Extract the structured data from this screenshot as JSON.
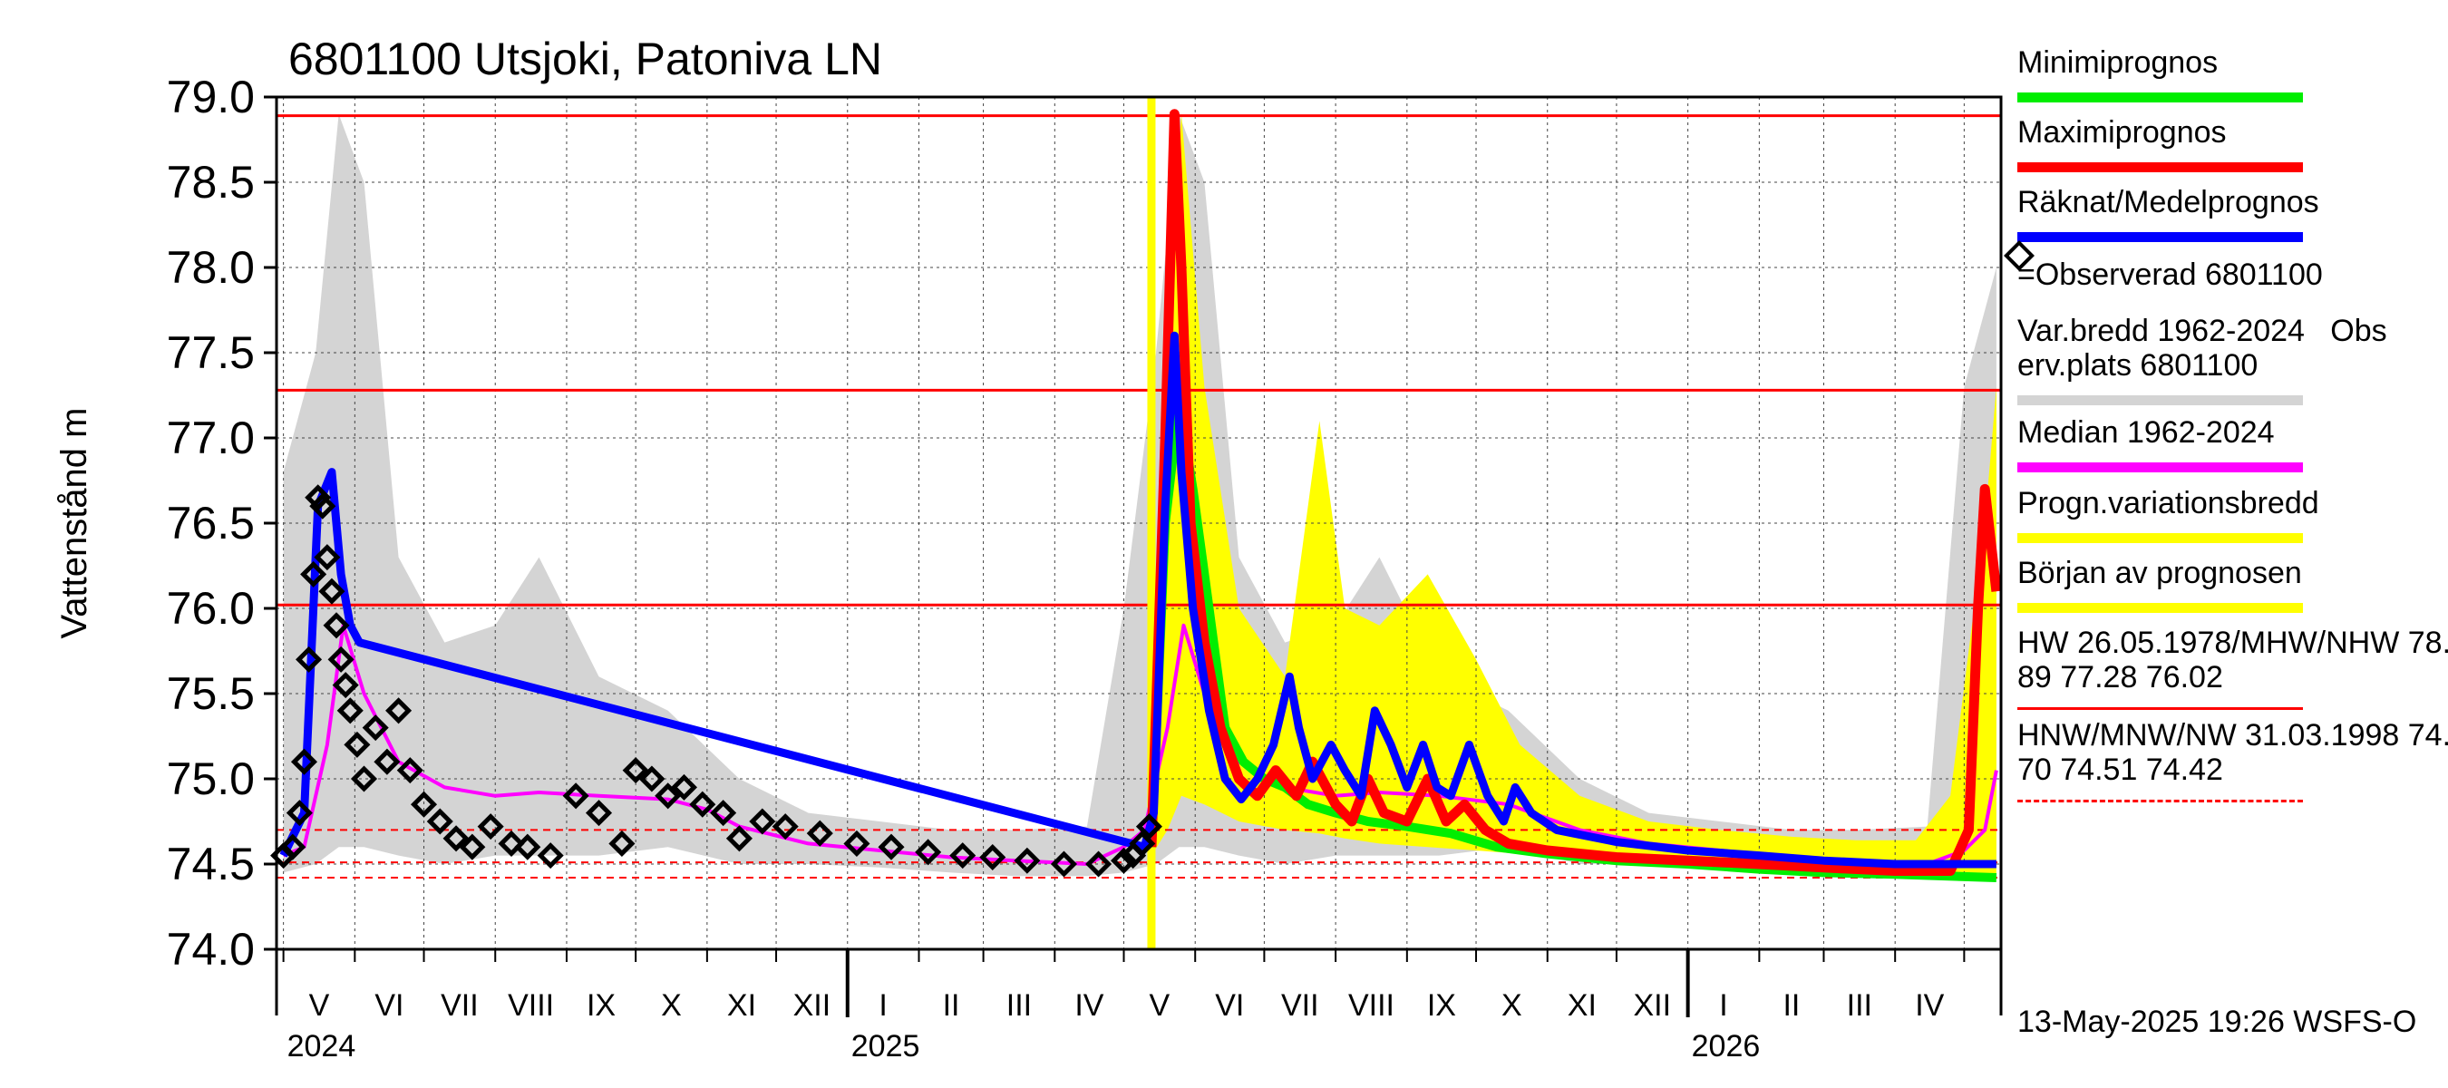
{
  "chart_data": {
    "type": "line",
    "title": "6801100 Utsjoki, Patoniva LN",
    "ylabel": "Vattenstånd m",
    "ylim": [
      74.0,
      79.0
    ],
    "yticks": [
      "74.0",
      "74.5",
      "75.0",
      "75.5",
      "76.0",
      "76.5",
      "77.0",
      "77.5",
      "78.0",
      "78.5",
      "79.0"
    ],
    "grid": true,
    "months": [
      "V",
      "VI",
      "VII",
      "VIII",
      "IX",
      "X",
      "XI",
      "XII",
      "I",
      "II",
      "III",
      "IV",
      "V",
      "VI",
      "VII",
      "VIII",
      "IX",
      "X",
      "XI",
      "XII",
      "I",
      "II",
      "III",
      "IV"
    ],
    "years": [
      "2024",
      "2025",
      "2026"
    ],
    "forecast_start": "2025-05-13",
    "reference_lines": [
      {
        "name": "HW",
        "value": 78.89,
        "style": "solid"
      },
      {
        "name": "MHW",
        "value": 77.28,
        "style": "solid"
      },
      {
        "name": "NHW",
        "value": 76.02,
        "style": "solid"
      },
      {
        "name": "HNW",
        "value": 74.7,
        "style": "dashed"
      },
      {
        "name": "MNW",
        "value": 74.51,
        "style": "dashed"
      },
      {
        "name": "NW",
        "value": 74.42,
        "style": "dashed"
      }
    ],
    "series": [
      {
        "name": "Var.bredd 1962-2024 Obs erv.plats 6801100",
        "kind": "band",
        "color": "#d4d4d4",
        "x": [
          "2024-05-01",
          "2024-05-15",
          "2024-05-25",
          "2024-06-05",
          "2024-06-20",
          "2024-07-10",
          "2024-08-01",
          "2024-08-20",
          "2024-09-15",
          "2024-10-15",
          "2024-11-15",
          "2024-12-15",
          "2025-01-15",
          "2025-02-15",
          "2025-03-15",
          "2025-04-15",
          "2025-05-01",
          "2025-05-15",
          "2025-05-25",
          "2025-06-05",
          "2025-06-20",
          "2025-07-10",
          "2025-08-01",
          "2025-08-20",
          "2025-09-15",
          "2025-10-15",
          "2025-11-15",
          "2025-12-15",
          "2026-01-15",
          "2026-02-15",
          "2026-03-15",
          "2026-04-15",
          "2026-05-01",
          "2026-05-15"
        ],
        "low": [
          74.45,
          74.5,
          74.6,
          74.6,
          74.55,
          74.5,
          74.55,
          74.55,
          74.55,
          74.6,
          74.5,
          74.5,
          74.48,
          74.45,
          74.43,
          74.43,
          74.45,
          74.5,
          74.6,
          74.6,
          74.55,
          74.5,
          74.55,
          74.55,
          74.55,
          74.6,
          74.5,
          74.5,
          74.48,
          74.45,
          74.43,
          74.43,
          74.45,
          74.5
        ],
        "high": [
          76.8,
          77.5,
          78.9,
          78.5,
          76.3,
          75.8,
          75.9,
          76.3,
          75.6,
          75.4,
          75.0,
          74.8,
          74.75,
          74.7,
          74.7,
          74.72,
          76.0,
          77.5,
          78.9,
          78.5,
          76.3,
          75.8,
          75.9,
          76.3,
          75.6,
          75.4,
          75.0,
          74.8,
          74.75,
          74.7,
          74.7,
          74.72,
          77.3,
          78.0
        ]
      },
      {
        "name": "Progn.variationsbredd",
        "kind": "band",
        "color": "#ffff00",
        "x": [
          "2025-05-13",
          "2025-05-20",
          "2025-05-26",
          "2025-06-05",
          "2025-06-20",
          "2025-07-10",
          "2025-07-25",
          "2025-08-05",
          "2025-08-20",
          "2025-09-10",
          "2025-10-01",
          "2025-10-20",
          "2025-11-15",
          "2025-12-15",
          "2026-01-15",
          "2026-02-15",
          "2026-03-15",
          "2026-04-10",
          "2026-04-25",
          "2026-05-10",
          "2026-05-15"
        ],
        "low": [
          74.55,
          74.7,
          74.9,
          74.85,
          74.75,
          74.7,
          74.68,
          74.65,
          74.62,
          74.6,
          74.58,
          74.56,
          74.54,
          74.52,
          74.5,
          74.48,
          74.46,
          74.44,
          74.44,
          74.44,
          74.44
        ],
        "high": [
          74.8,
          77.5,
          78.9,
          77.3,
          76.0,
          75.6,
          77.1,
          76.0,
          75.9,
          76.2,
          75.7,
          75.2,
          74.9,
          74.75,
          74.7,
          74.66,
          74.64,
          74.64,
          74.9,
          76.5,
          77.3
        ]
      },
      {
        "name": "Median 1962-2024",
        "kind": "line",
        "color": "#ff00ff",
        "x": [
          "2024-05-01",
          "2024-05-10",
          "2024-05-20",
          "2024-05-27",
          "2024-06-05",
          "2024-06-20",
          "2024-07-10",
          "2024-08-01",
          "2024-08-20",
          "2024-09-15",
          "2024-10-15",
          "2024-11-01",
          "2024-11-15",
          "2024-12-15",
          "2025-01-15",
          "2025-02-15",
          "2025-03-15",
          "2025-04-15",
          "2025-05-01",
          "2025-05-10",
          "2025-05-20",
          "2025-05-27",
          "2025-06-05",
          "2025-06-20",
          "2025-07-10",
          "2025-08-01",
          "2025-08-20",
          "2025-09-15",
          "2025-10-15",
          "2025-11-15",
          "2025-12-15",
          "2026-01-15",
          "2026-02-15",
          "2026-03-15",
          "2026-04-15",
          "2026-05-01",
          "2026-05-10",
          "2026-05-15"
        ],
        "y": [
          74.55,
          74.6,
          75.2,
          75.9,
          75.5,
          75.1,
          74.95,
          74.9,
          74.92,
          74.9,
          74.88,
          74.82,
          74.72,
          74.62,
          74.58,
          74.54,
          74.52,
          74.5,
          74.6,
          74.7,
          75.3,
          75.9,
          75.5,
          75.1,
          74.95,
          74.9,
          74.92,
          74.9,
          74.85,
          74.7,
          74.62,
          74.58,
          74.54,
          74.52,
          74.5,
          74.58,
          74.7,
          75.05
        ]
      },
      {
        "name": "Räknat/Medelprognos",
        "kind": "line",
        "color": "#0000ff",
        "x": [
          "2024-05-01",
          "2024-05-10",
          "2024-05-16",
          "2024-05-22",
          "2024-05-26",
          "2024-05-30",
          "2024-06-03",
          "2025-05-10",
          "2025-05-14",
          "2025-05-19",
          "2025-05-23",
          "2025-05-26",
          "2025-05-31",
          "2025-06-07",
          "2025-06-14",
          "2025-06-21",
          "2025-06-28",
          "2025-07-05",
          "2025-07-12",
          "2025-07-16",
          "2025-07-22",
          "2025-07-30",
          "2025-08-05",
          "2025-08-12",
          "2025-08-18",
          "2025-08-25",
          "2025-09-01",
          "2025-09-08",
          "2025-09-14",
          "2025-09-20",
          "2025-09-28",
          "2025-10-06",
          "2025-10-13",
          "2025-10-18",
          "2025-10-25",
          "2025-11-05",
          "2025-12-01",
          "2026-01-01",
          "2026-02-01",
          "2026-03-01",
          "2026-04-01",
          "2026-05-15"
        ],
        "y": [
          74.55,
          74.8,
          76.6,
          76.8,
          76.2,
          75.9,
          75.8,
          74.6,
          74.8,
          76.6,
          77.6,
          76.8,
          76.0,
          75.4,
          75.0,
          74.88,
          75.0,
          75.2,
          75.6,
          75.3,
          75.0,
          75.2,
          75.05,
          74.9,
          75.4,
          75.2,
          74.95,
          75.2,
          74.95,
          74.9,
          75.2,
          74.9,
          74.75,
          74.95,
          74.8,
          74.7,
          74.63,
          74.58,
          74.55,
          74.52,
          74.5,
          74.5
        ]
      },
      {
        "name": "Minimiprognos",
        "kind": "line",
        "color": "#00ee00",
        "x": [
          "2025-05-13",
          "2025-05-19",
          "2025-05-25",
          "2025-05-31",
          "2025-06-07",
          "2025-06-14",
          "2025-06-22",
          "2025-07-01",
          "2025-07-10",
          "2025-07-20",
          "2025-08-01",
          "2025-08-15",
          "2025-09-01",
          "2025-09-20",
          "2025-10-10",
          "2025-11-01",
          "2025-12-01",
          "2026-01-01",
          "2026-02-01",
          "2026-03-01",
          "2026-04-01",
          "2026-05-15"
        ],
        "y": [
          74.6,
          76.5,
          77.2,
          76.7,
          76.0,
          75.3,
          75.1,
          75.0,
          74.95,
          74.85,
          74.8,
          74.75,
          74.72,
          74.68,
          74.6,
          74.56,
          74.52,
          74.5,
          74.47,
          74.45,
          74.44,
          74.42
        ]
      },
      {
        "name": "Maximiprognos",
        "kind": "line",
        "color": "#ff0000",
        "x": [
          "2025-05-13",
          "2025-05-19",
          "2025-05-23",
          "2025-05-26",
          "2025-05-30",
          "2025-06-05",
          "2025-06-12",
          "2025-06-20",
          "2025-06-28",
          "2025-07-06",
          "2025-07-15",
          "2025-07-22",
          "2025-08-01",
          "2025-08-08",
          "2025-08-15",
          "2025-08-22",
          "2025-09-01",
          "2025-09-10",
          "2025-09-18",
          "2025-09-26",
          "2025-10-05",
          "2025-10-15",
          "2025-11-01",
          "2025-12-01",
          "2026-01-01",
          "2026-02-01",
          "2026-03-01",
          "2026-04-01",
          "2026-04-25",
          "2026-05-03",
          "2026-05-07",
          "2026-05-10",
          "2026-05-15"
        ],
        "y": [
          74.6,
          77.0,
          78.9,
          78.0,
          76.5,
          75.8,
          75.3,
          75.0,
          74.9,
          75.05,
          74.9,
          75.1,
          74.85,
          74.75,
          75.0,
          74.8,
          74.75,
          75.0,
          74.75,
          74.85,
          74.7,
          74.62,
          74.58,
          74.54,
          74.52,
          74.5,
          74.48,
          74.46,
          74.46,
          74.7,
          76.0,
          76.7,
          76.1
        ]
      },
      {
        "name": "Observerad 6801100",
        "kind": "scatter",
        "color": "#000000",
        "x": [
          "2024-05-01",
          "2024-05-05",
          "2024-05-08",
          "2024-05-10",
          "2024-05-12",
          "2024-05-14",
          "2024-05-16",
          "2024-05-18",
          "2024-05-20",
          "2024-05-22",
          "2024-05-24",
          "2024-05-26",
          "2024-05-28",
          "2024-05-30",
          "2024-06-02",
          "2024-06-05",
          "2024-06-10",
          "2024-06-15",
          "2024-06-20",
          "2024-06-25",
          "2024-07-01",
          "2024-07-08",
          "2024-07-15",
          "2024-07-22",
          "2024-07-30",
          "2024-08-08",
          "2024-08-15",
          "2024-08-25",
          "2024-09-05",
          "2024-09-15",
          "2024-09-25",
          "2024-10-01",
          "2024-10-08",
          "2024-10-15",
          "2024-10-22",
          "2024-10-30",
          "2024-11-08",
          "2024-11-15",
          "2024-11-25",
          "2024-12-05",
          "2024-12-20",
          "2025-01-05",
          "2025-01-20",
          "2025-02-05",
          "2025-02-20",
          "2025-03-05",
          "2025-03-20",
          "2025-04-05",
          "2025-04-20",
          "2025-05-01",
          "2025-05-05",
          "2025-05-09",
          "2025-05-12"
        ],
        "y": [
          74.55,
          74.6,
          74.8,
          75.1,
          75.7,
          76.2,
          76.65,
          76.6,
          76.3,
          76.1,
          75.9,
          75.7,
          75.55,
          75.4,
          75.2,
          75.0,
          75.3,
          75.1,
          75.4,
          75.05,
          74.85,
          74.75,
          74.65,
          74.6,
          74.72,
          74.62,
          74.6,
          74.55,
          74.9,
          74.8,
          74.62,
          75.05,
          75.0,
          74.9,
          74.95,
          74.85,
          74.8,
          74.65,
          74.75,
          74.72,
          74.68,
          74.62,
          74.6,
          74.57,
          74.55,
          74.54,
          74.52,
          74.5,
          74.5,
          74.52,
          74.55,
          74.62,
          74.72
        ]
      }
    ]
  },
  "legend": {
    "items": [
      {
        "label": "Minimiprognos",
        "color": "#00ee00"
      },
      {
        "label": "Maximiprognos",
        "color": "#ff0000"
      },
      {
        "label": "Räknat/Medelprognos",
        "color": "#0000ff"
      },
      {
        "label": "=Observerad 6801100",
        "color": "#000000"
      },
      {
        "label": "Var.bredd 1962-2024   Obs\nerv.plats 6801100",
        "color": "#d4d4d4"
      },
      {
        "label": "Median 1962-2024",
        "color": "#ff00ff"
      },
      {
        "label": "Progn.variationsbredd",
        "color": "#ffff00"
      },
      {
        "label": "Början av prognosen",
        "color": "#ffff00"
      },
      {
        "label": "HW 26.05.1978/MHW/NHW 78.\n89 77.28 76.02",
        "color": "#ff0000"
      },
      {
        "label": "HNW/MNW/NW 31.03.1998 74.\n70 74.51 74.42",
        "color": "#ff0000"
      }
    ]
  },
  "footer": "13-May-2025 19:26 WSFS-O"
}
